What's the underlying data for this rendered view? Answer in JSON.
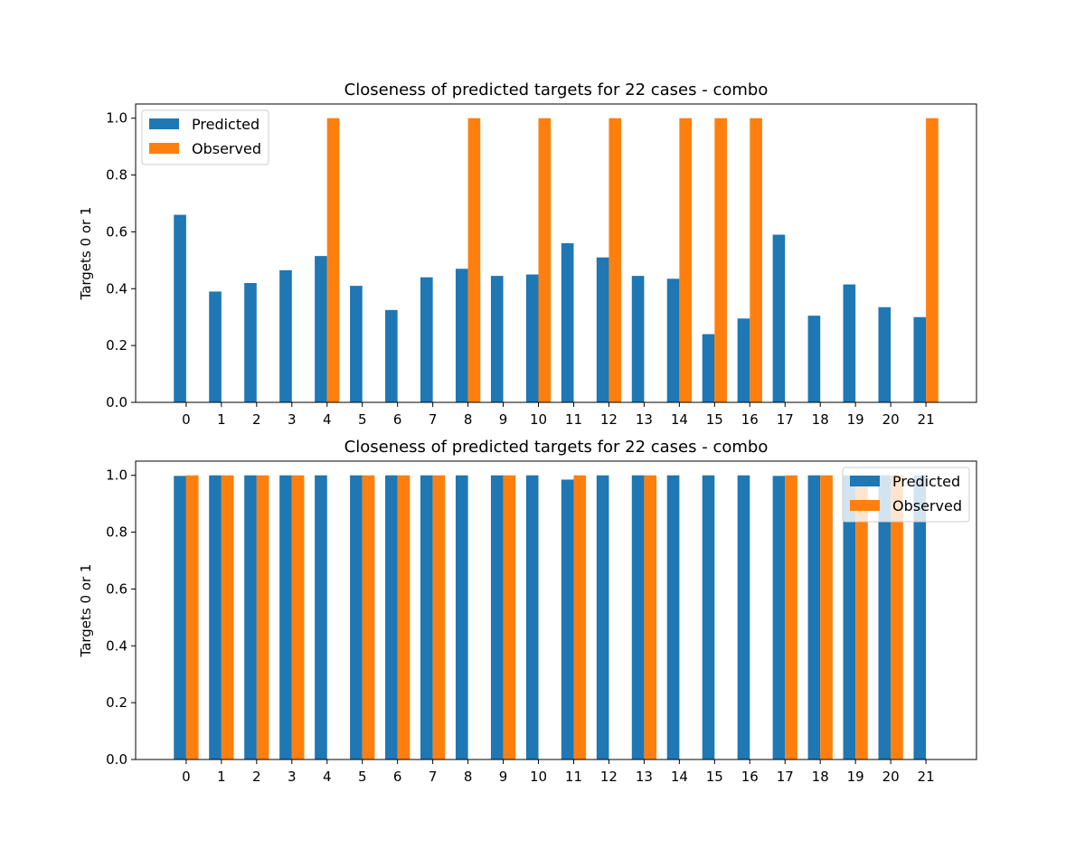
{
  "colors": {
    "predicted": "#1f77b4",
    "observed": "#ff7f0e",
    "axis": "#000000",
    "background": "#ffffff"
  },
  "chart_data": [
    {
      "type": "bar",
      "title": "Closeness of predicted targets for 22 cases - combo",
      "xlabel": "",
      "ylabel": "Targets 0 or 1",
      "ylim": [
        0,
        1.05
      ],
      "yticks": [
        0.0,
        0.2,
        0.4,
        0.6,
        0.8,
        1.0
      ],
      "ytick_labels": [
        "0.0",
        "0.2",
        "0.4",
        "0.6",
        "0.8",
        "1.0"
      ],
      "categories": [
        "0",
        "1",
        "2",
        "3",
        "4",
        "5",
        "6",
        "7",
        "8",
        "9",
        "10",
        "11",
        "12",
        "13",
        "14",
        "15",
        "16",
        "17",
        "18",
        "19",
        "20",
        "21"
      ],
      "legend_position": "upper-left",
      "grid": false,
      "series": [
        {
          "name": "Predicted",
          "values": [
            0.66,
            0.39,
            0.42,
            0.465,
            0.515,
            0.41,
            0.325,
            0.44,
            0.47,
            0.445,
            0.45,
            0.56,
            0.51,
            0.445,
            0.435,
            0.24,
            0.295,
            0.59,
            0.305,
            0.415,
            0.335,
            0.3
          ]
        },
        {
          "name": "Observed",
          "values": [
            0,
            0,
            0,
            0,
            1,
            0,
            0,
            0,
            1,
            0,
            1,
            0,
            1,
            0,
            1,
            1,
            1,
            0,
            0,
            0,
            0,
            1
          ]
        }
      ]
    },
    {
      "type": "bar",
      "title": "Closeness of predicted targets for 22 cases - combo",
      "xlabel": "",
      "ylabel": "Targets 0 or 1",
      "ylim": [
        0,
        1.05
      ],
      "yticks": [
        0.0,
        0.2,
        0.4,
        0.6,
        0.8,
        1.0
      ],
      "ytick_labels": [
        "0.0",
        "0.2",
        "0.4",
        "0.6",
        "0.8",
        "1.0"
      ],
      "categories": [
        "0",
        "1",
        "2",
        "3",
        "4",
        "5",
        "6",
        "7",
        "8",
        "9",
        "10",
        "11",
        "12",
        "13",
        "14",
        "15",
        "16",
        "17",
        "18",
        "19",
        "20",
        "21"
      ],
      "legend_position": "upper-right",
      "grid": false,
      "series": [
        {
          "name": "Predicted",
          "values": [
            0.998,
            1,
            1,
            1,
            1,
            1,
            1,
            1,
            1,
            1,
            1,
            0.985,
            1,
            1,
            1,
            1,
            1,
            0.998,
            1,
            1,
            1,
            1
          ]
        },
        {
          "name": "Observed",
          "values": [
            1,
            1,
            1,
            1,
            0,
            1,
            1,
            1,
            0,
            1,
            0,
            1,
            0,
            1,
            0,
            0,
            0,
            1,
            1,
            1,
            1,
            0
          ]
        }
      ]
    }
  ]
}
